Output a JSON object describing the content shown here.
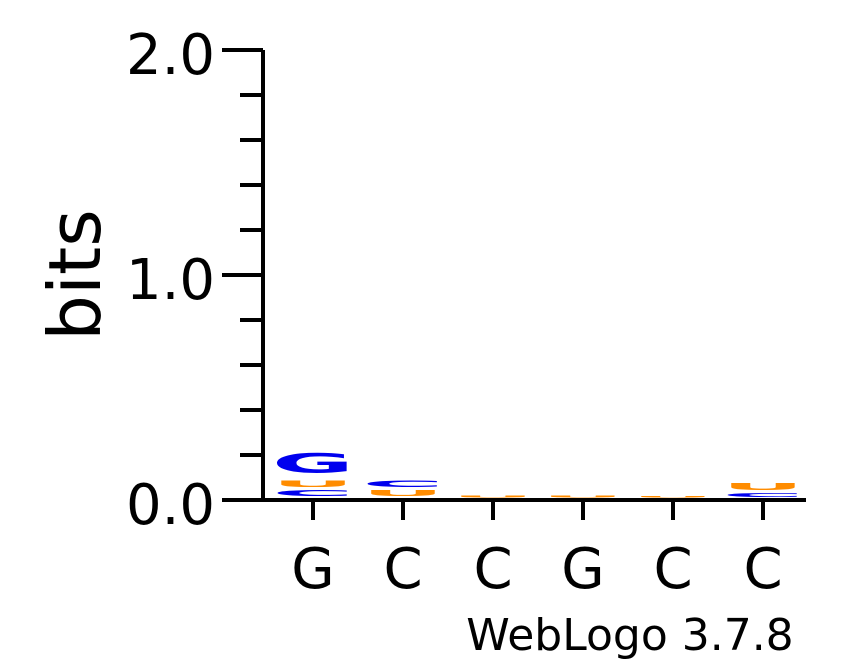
{
  "chart_data": {
    "type": "sequence-logo",
    "ylabel": "bits",
    "ylim": [
      0,
      2.0
    ],
    "yticks": [
      "0.0",
      "1.0",
      "2.0"
    ],
    "xtick_labels": [
      "G",
      "C",
      "C",
      "G",
      "C",
      "C"
    ],
    "credit": "WebLogo 3.7.8",
    "colors": {
      "G": "#0000ee",
      "C": "#0000ee",
      "U": "#ff8c00"
    },
    "positions": [
      {
        "label": "G",
        "stack": [
          {
            "letter": "C",
            "bits": 0.04
          },
          {
            "letter": "U",
            "bits": 0.045
          },
          {
            "letter": "G",
            "bits": 0.14
          }
        ]
      },
      {
        "label": "C",
        "stack": [
          {
            "letter": "U",
            "bits": 0.04
          },
          {
            "letter": "C",
            "bits": 0.045
          }
        ]
      },
      {
        "label": "C",
        "stack": [
          {
            "letter": "U",
            "bits": 0.012
          }
        ]
      },
      {
        "label": "G",
        "stack": [
          {
            "letter": "U",
            "bits": 0.014
          }
        ]
      },
      {
        "label": "C",
        "stack": [
          {
            "letter": "U",
            "bits": 0.008
          }
        ]
      },
      {
        "label": "C",
        "stack": [
          {
            "letter": "C",
            "bits": 0.025
          },
          {
            "letter": "U",
            "bits": 0.05
          }
        ]
      }
    ]
  }
}
